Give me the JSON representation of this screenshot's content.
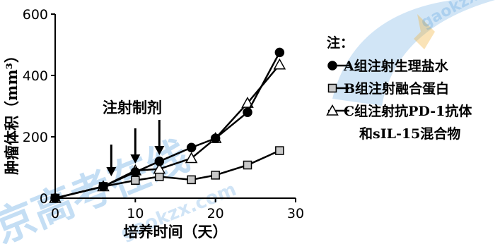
{
  "watermark": {
    "text": "京高考在线",
    "sub_text": "gaokzx.com",
    "color": "#2e8ad8"
  },
  "chart_data": {
    "type": "line",
    "xlabel": "培养时间（天）",
    "ylabel": "肿瘤体积（mm³）",
    "xlim": [
      0,
      30
    ],
    "ylim": [
      0,
      600
    ],
    "xticks": [
      "0",
      "10",
      "20",
      "30"
    ],
    "yticks": [
      "0",
      "200",
      "400",
      "600"
    ],
    "grid": false,
    "legend_position": "right",
    "legend_title": "注：",
    "series": [
      {
        "name": "A组注射生理盐水",
        "marker": "circle-filled",
        "x": [
          0,
          6,
          10,
          13,
          17,
          20,
          24,
          28
        ],
        "y": [
          0,
          38,
          85,
          120,
          165,
          195,
          280,
          475
        ]
      },
      {
        "name": "B组注射融合蛋白",
        "marker": "square-gray",
        "x": [
          0,
          6,
          10,
          13,
          17,
          20,
          24,
          28
        ],
        "y": [
          0,
          38,
          58,
          70,
          60,
          75,
          108,
          155
        ]
      },
      {
        "name": "C组注射抗PD-1抗体",
        "name_line2": "和sIL-15混合物",
        "marker": "triangle-open",
        "x": [
          0,
          6,
          10,
          13,
          17,
          20,
          24,
          28
        ],
        "y": [
          0,
          38,
          90,
          95,
          130,
          195,
          310,
          435
        ]
      }
    ],
    "annotation": {
      "text": "注射制剂",
      "arrow_x": [
        7,
        10,
        13
      ]
    }
  }
}
